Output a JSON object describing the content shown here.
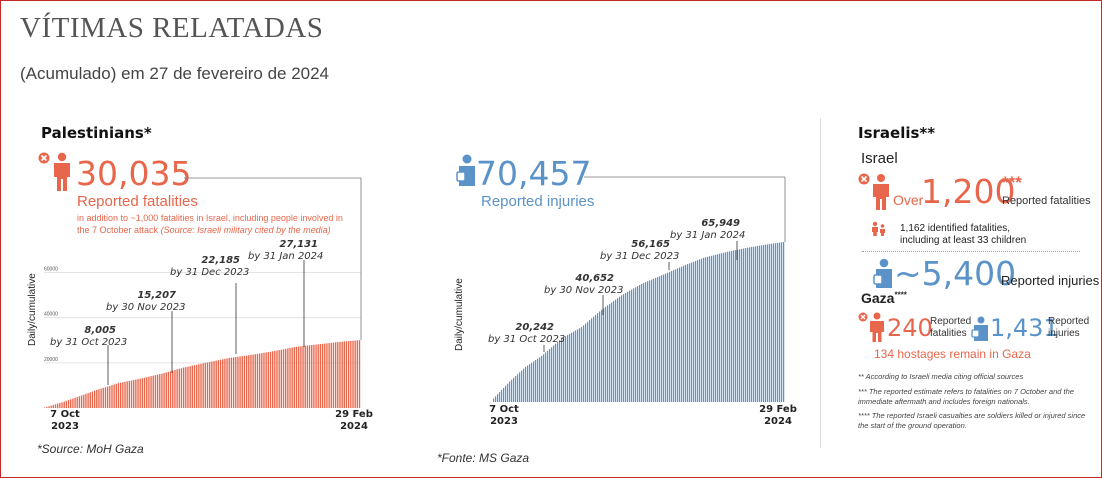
{
  "header": {
    "title": "VÍTIMAS RELATADAS",
    "subtitle": "(Acumulado) em 27 de fevereiro de 2024"
  },
  "colors": {
    "palestine": "#e8664b",
    "injuries": "#5b93c9",
    "grid": "#dddddd"
  },
  "palestinians": {
    "heading": "Palestinians*",
    "fatalities": "30,035",
    "fatalities_label": "Reported fatalities",
    "note_main": "in addition to ~1,000 fatalities in Israel, including people involved in the 7 October attack",
    "note_italic": "(Source: Israeli military cited by the media)",
    "injuries": "70,457",
    "injuries_label": "Reported injuries",
    "source_1": "*Source: MoH Gaza",
    "source_2": "*Fonte: MS Gaza",
    "ylabel": "Daily/cumulative"
  },
  "israelis": {
    "heading": "Israelis**",
    "israel_label": "Israel",
    "over": "Over",
    "fatalities": "1,200",
    "fatalities_stars": "***",
    "fatalities_label": "Reported fatalities",
    "identified": "1,162 identified fatalities,",
    "identified_2": "including at least 33 children",
    "injuries": "~5,400",
    "injuries_label": "Reported injuries",
    "gaza_label": "Gaza",
    "gaza_stars": "****",
    "gaza_fatalities": "240",
    "gaza_fatalities_label_1": "Reported",
    "gaza_fatalities_label_2": "fatalities",
    "gaza_injuries": "1,431",
    "gaza_injuries_label_1": "Reported",
    "gaza_injuries_label_2": "injuries",
    "hostages": "134 hostages remain in Gaza",
    "footnote_1": "** According to Israeli media citing official sources",
    "footnote_2": "*** The reported estimate refers to fatalities on 7 October and the immediate aftermath and includes foreign nationals.",
    "footnote_3": "**** The reported Israeli casualties are soldiers killed or injured since the start of the ground operation."
  },
  "chart_data": [
    {
      "type": "bar",
      "title": "Reported fatalities",
      "ylabel": "Daily/cumulative",
      "x_start": "7 Oct 2023",
      "x_end": "29 Feb 2024",
      "x_start_label": [
        "7 Oct",
        "2023"
      ],
      "x_end_label": [
        "29 Feb",
        "2024"
      ],
      "ylim": [
        0,
        70000
      ],
      "yticks": [
        20000,
        40000,
        60000
      ],
      "ytick_labels": [
        "20000",
        "40000",
        "60000"
      ],
      "cumulative_series": [
        [
          "2023-10-07",
          200
        ],
        [
          "2023-10-15",
          2500
        ],
        [
          "2023-10-23",
          5200
        ],
        [
          "2023-10-31",
          8005
        ],
        [
          "2023-11-10",
          11000
        ],
        [
          "2023-11-20",
          13000
        ],
        [
          "2023-11-30",
          15207
        ],
        [
          "2023-12-10",
          17900
        ],
        [
          "2023-12-20",
          20000
        ],
        [
          "2023-12-31",
          22185
        ],
        [
          "2024-01-10",
          23500
        ],
        [
          "2024-01-20",
          25100
        ],
        [
          "2024-01-31",
          27131
        ],
        [
          "2024-02-10",
          28200
        ],
        [
          "2024-02-20",
          29300
        ],
        [
          "2024-02-29",
          30035
        ]
      ],
      "annotations": [
        {
          "date": "2023-10-31",
          "value": "8,005",
          "label": "by 31 Oct 2023"
        },
        {
          "date": "2023-11-30",
          "value": "15,207",
          "label": "by 30 Nov 2023"
        },
        {
          "date": "2023-12-31",
          "value": "22,185",
          "label": "by 31 Dec 2023"
        },
        {
          "date": "2024-01-31",
          "value": "27,131",
          "label": "by 31 Jan 2024"
        }
      ]
    },
    {
      "type": "bar",
      "title": "Reported injuries",
      "ylabel": "Daily/cumulative",
      "x_start": "7 Oct 2023",
      "x_end": "29 Feb 2024",
      "x_start_label": [
        "7 Oct",
        "2023"
      ],
      "x_end_label": [
        "29 Feb",
        "2024"
      ],
      "ylim": [
        0,
        80000
      ],
      "cumulative_series": [
        [
          "2023-10-07",
          1600
        ],
        [
          "2023-10-15",
          9000
        ],
        [
          "2023-10-23",
          15500
        ],
        [
          "2023-10-31",
          20242
        ],
        [
          "2023-11-10",
          28000
        ],
        [
          "2023-11-20",
          33000
        ],
        [
          "2023-11-30",
          40652
        ],
        [
          "2023-12-10",
          47000
        ],
        [
          "2023-12-20",
          52000
        ],
        [
          "2023-12-31",
          56165
        ],
        [
          "2024-01-10",
          60000
        ],
        [
          "2024-01-20",
          63500
        ],
        [
          "2024-01-31",
          65949
        ],
        [
          "2024-02-10",
          67800
        ],
        [
          "2024-02-20",
          69300
        ],
        [
          "2024-02-29",
          70457
        ]
      ],
      "annotations": [
        {
          "date": "2023-10-31",
          "value": "20,242",
          "label": "by 31 Oct 2023"
        },
        {
          "date": "2023-11-30",
          "value": "40,652",
          "label": "by 30 Nov 2023"
        },
        {
          "date": "2023-12-31",
          "value": "56,165",
          "label": "by 31 Dec 2023"
        },
        {
          "date": "2024-01-31",
          "value": "65,949",
          "label": "by 31 Jan 2024"
        }
      ]
    }
  ]
}
